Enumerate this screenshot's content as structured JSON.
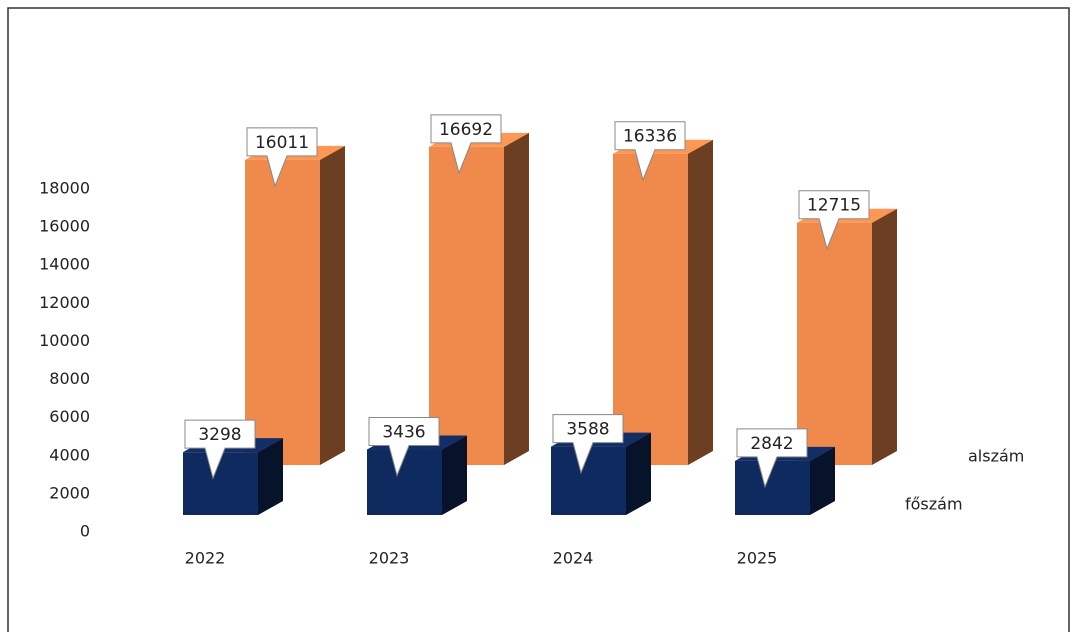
{
  "chart_data": {
    "type": "bar3d",
    "categories": [
      "2022",
      "2023",
      "2024",
      "2025"
    ],
    "series": [
      {
        "name": "főszám",
        "color": "#0f2a5e",
        "values": [
          3298,
          3436,
          3588,
          2842
        ]
      },
      {
        "name": "alszám",
        "color": "#f0894c",
        "values": [
          16011,
          16692,
          16336,
          12715
        ]
      }
    ],
    "ylim": [
      0,
      18000
    ],
    "yticks": [
      0,
      2000,
      4000,
      6000,
      8000,
      10000,
      12000,
      14000,
      16000,
      18000
    ]
  }
}
